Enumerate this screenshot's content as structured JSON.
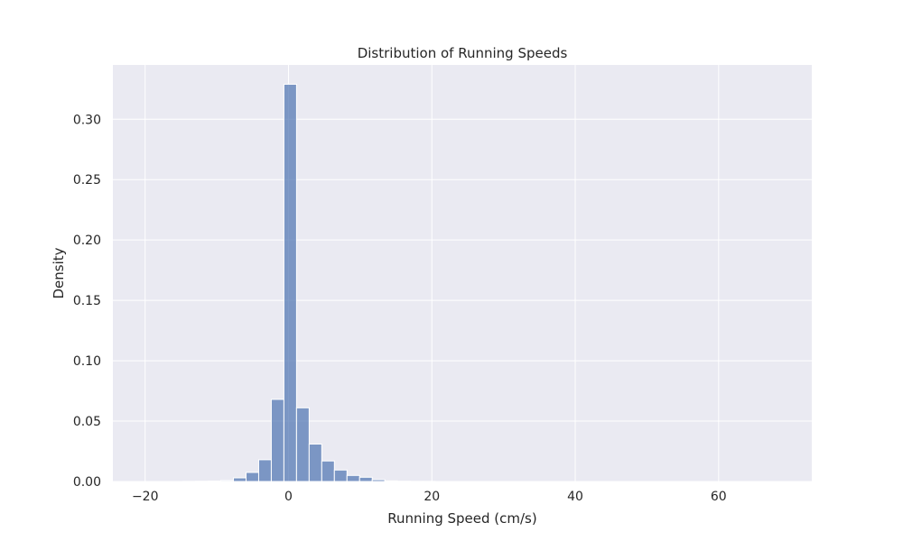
{
  "chart_data": {
    "type": "histogram",
    "title": "Distribution of Running Speeds",
    "xlabel": "Running Speed (cm/s)",
    "ylabel": "Density",
    "xlim": [
      -24.5,
      73
    ],
    "ylim": [
      0,
      0.345
    ],
    "grid": true,
    "colors": {
      "bar": "#4c72b0",
      "plot_background": "#eaeaf2",
      "grid": "#ffffff"
    },
    "x_ticks": [
      {
        "value": -20,
        "label": "−20"
      },
      {
        "value": 0,
        "label": "0"
      },
      {
        "value": 20,
        "label": "20"
      },
      {
        "value": 40,
        "label": "40"
      },
      {
        "value": 60,
        "label": "60"
      }
    ],
    "y_ticks": [
      {
        "value": 0.0,
        "label": "0.00"
      },
      {
        "value": 0.05,
        "label": "0.05"
      },
      {
        "value": 0.1,
        "label": "0.10"
      },
      {
        "value": 0.15,
        "label": "0.15"
      },
      {
        "value": 0.2,
        "label": "0.20"
      },
      {
        "value": 0.25,
        "label": "0.25"
      },
      {
        "value": 0.3,
        "label": "0.30"
      }
    ],
    "bin_edges": [
      -20.0,
      -18.24,
      -16.48,
      -14.72,
      -12.96,
      -11.2,
      -9.44,
      -7.68,
      -5.92,
      -4.16,
      -2.4,
      -0.64,
      1.12,
      2.88,
      4.64,
      6.4,
      8.16,
      9.92,
      11.68,
      13.44,
      15.2,
      16.96,
      18.72,
      20.48,
      22.24,
      24.0,
      25.76,
      27.52,
      29.28,
      31.04,
      32.8,
      34.56,
      36.32,
      38.08,
      39.84,
      41.6,
      43.36,
      45.12,
      46.88,
      48.64,
      50.4,
      52.16,
      53.92,
      55.68,
      57.44,
      59.2,
      60.96,
      62.72,
      64.48,
      66.24,
      68.0
    ],
    "density": [
      0.0,
      0.0,
      0.0,
      0.0001,
      0.0002,
      0.0004,
      0.0008,
      0.003,
      0.0075,
      0.018,
      0.068,
      0.329,
      0.061,
      0.031,
      0.017,
      0.0095,
      0.005,
      0.0035,
      0.0015,
      0.0005,
      0.0002,
      0.0001,
      0.0001,
      0.0,
      0.0,
      0.0,
      0.0,
      0.0,
      0.0,
      0.0,
      0.0,
      0.0,
      0.0,
      0.0,
      0.0,
      0.0,
      0.0,
      0.0,
      0.0,
      0.0,
      0.0,
      0.0,
      0.0,
      0.0,
      0.0,
      0.0,
      0.0,
      0.0,
      0.0,
      0.0
    ]
  }
}
